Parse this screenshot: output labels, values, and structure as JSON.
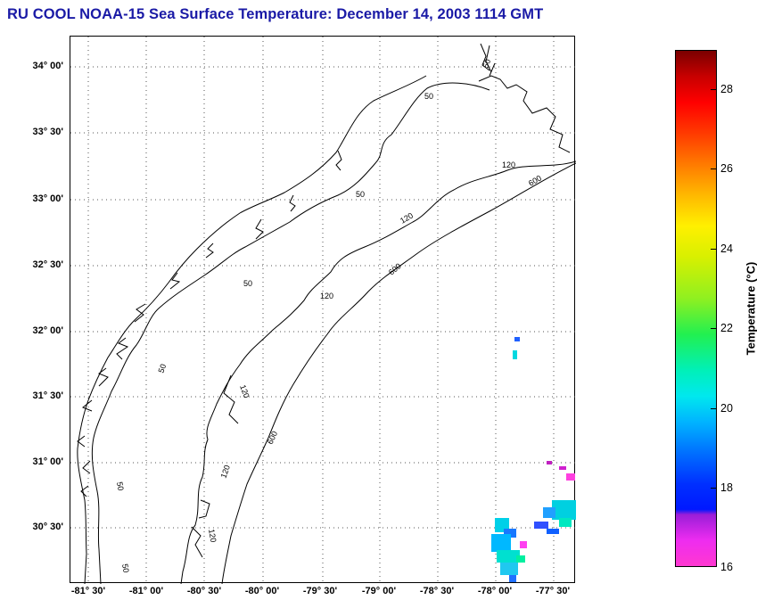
{
  "title": "RU COOL  NOAA-15  Sea Surface Temperature:  December 14, 2003 1114 GMT",
  "map": {
    "y_ticks": [
      "34° 00'",
      "33° 30'",
      "33° 00'",
      "32° 30'",
      "32° 00'",
      "31° 30'",
      "31° 00'",
      "30° 30'"
    ],
    "x_ticks": [
      "-81° 30'",
      "-81° 00'",
      "-80° 30'",
      "-80° 00'",
      "-79° 30'",
      "-79° 00'",
      "-78° 30'",
      "-78° 00'",
      "-77° 30'"
    ],
    "contour_labels": [
      "50",
      "50",
      "50",
      "50",
      "50",
      "50",
      "50",
      "120",
      "120",
      "120",
      "120",
      "120",
      "120",
      "600",
      "600",
      "600"
    ],
    "colors": {
      "grid": "#555555",
      "coast": "#000000",
      "contour": "#000000"
    }
  },
  "colorbar": {
    "label": "Temperature (°C)",
    "ticks": [
      "28",
      "26",
      "24",
      "22",
      "20",
      "18",
      "16"
    ],
    "min": 16,
    "max": 29
  }
}
